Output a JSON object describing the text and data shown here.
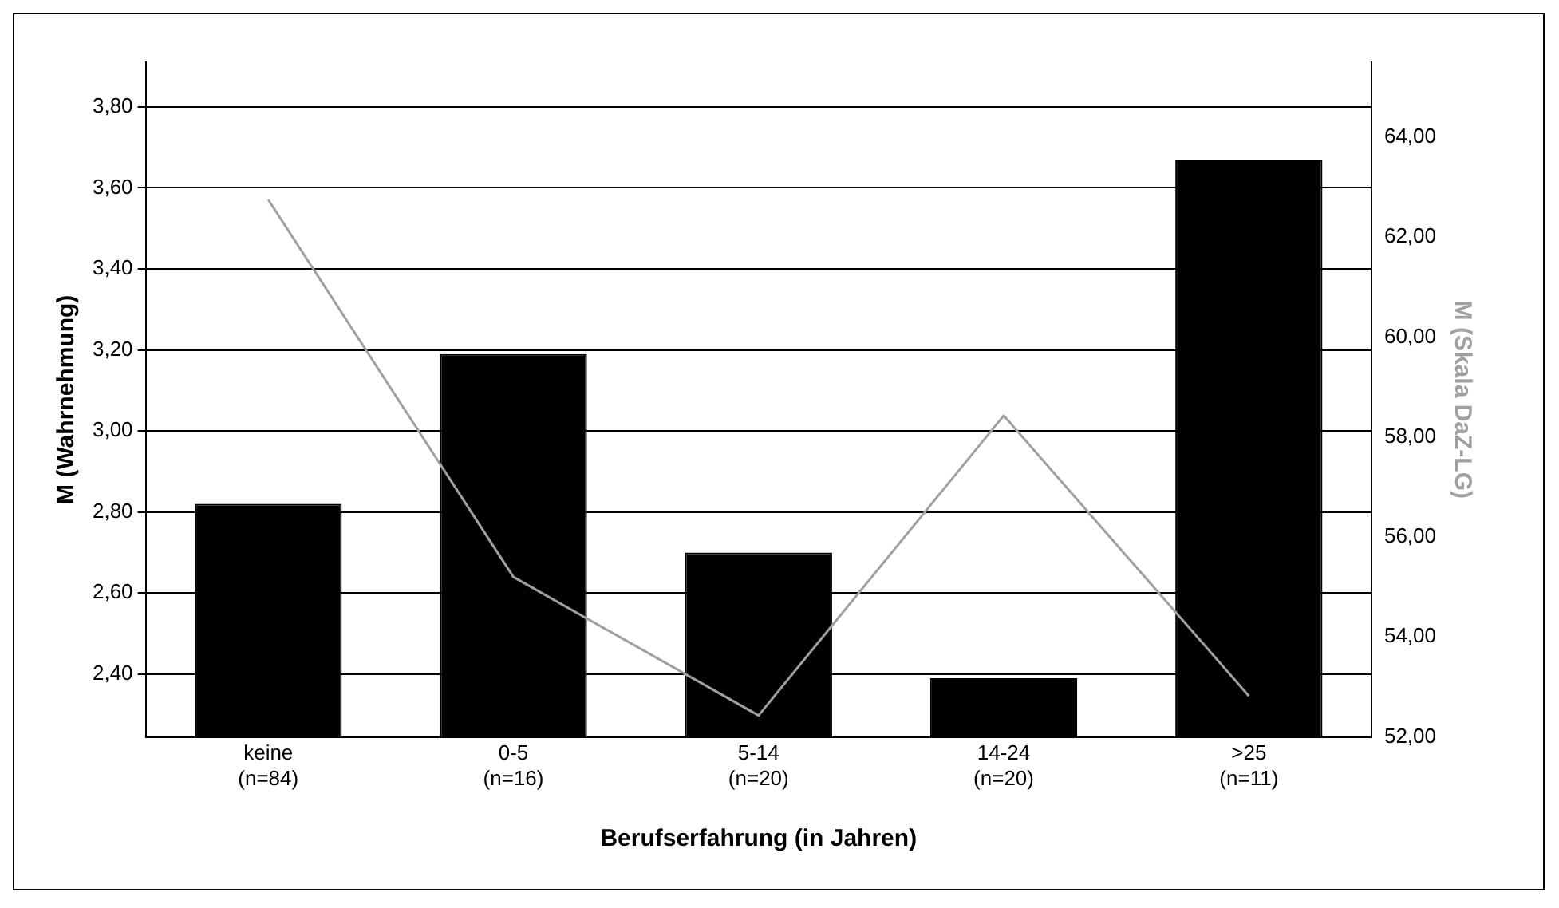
{
  "chart_data": {
    "type": "bar",
    "xlabel": "Berufserfahrung (in Jahren)",
    "ylabel": "M (Wahrnehmung)",
    "y2label": "M (Skala DaZ-LG)",
    "categories": [
      "keine\n(n=84)",
      "0-5\n(n=16)",
      "5-14\n(n=20)",
      "14-24\n(n=20)",
      ">25\n(n=11)"
    ],
    "series": [
      {
        "color": "#000000",
        "values": [
          2.82,
          3.19,
          2.7,
          2.39,
          3.67
        ]
      },
      {
        "type": "line",
        "axis": "y2",
        "color": "#a0a0a0",
        "values": [
          62.75,
          55.2,
          52.43,
          58.43,
          52.82
        ]
      }
    ],
    "ylim": [
      2.245,
      3.91
    ],
    "yticks": [
      {
        "value": 2.4,
        "label": "2,40"
      },
      {
        "value": 2.6,
        "label": "2,60"
      },
      {
        "value": 2.8,
        "label": "2,80"
      },
      {
        "value": 3.0,
        "label": "3,00"
      },
      {
        "value": 3.2,
        "label": "3,20"
      },
      {
        "value": 3.4,
        "label": "3,40"
      },
      {
        "value": 3.6,
        "label": "3,60"
      },
      {
        "value": 3.8,
        "label": "3,80"
      }
    ],
    "y2lim": [
      52,
      65.5
    ],
    "y2ticks": [
      {
        "value": 52,
        "label": "52,00"
      },
      {
        "value": 54,
        "label": "54,00"
      },
      {
        "value": 56,
        "label": "56,00"
      },
      {
        "value": 58,
        "label": "58,00"
      },
      {
        "value": 60,
        "label": "60,00"
      },
      {
        "value": 62,
        "label": "62,00"
      },
      {
        "value": 64,
        "label": "64,00"
      }
    ],
    "grid": "y",
    "legend": false,
    "marker": "none",
    "line_style": "solid"
  }
}
